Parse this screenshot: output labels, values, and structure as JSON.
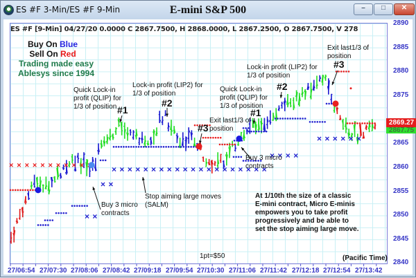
{
  "window": {
    "title": "ES #F 3-Min/ES #F 9-Min",
    "controls": {
      "minimize": "–",
      "maximize": "□",
      "close": "✕"
    },
    "icon": "app-globe-icon"
  },
  "chart": {
    "title": "E-mini S&P 500",
    "ohlc_line": "ES #F [9-Min] 04/27/20  0.0000 C 2867.7500, H 2868.0000, L 2867.2500, O 2867.7500, V 278",
    "legend": {
      "buy_prefix": "Buy On ",
      "buy_color_word": "Blue",
      "sell_prefix": "Sell On ",
      "sell_color_word": "Red",
      "tagline1": "Trading made easy",
      "tagline2": "Ablesys since 1994"
    },
    "price_tags": {
      "upper": "2869.27",
      "lower": "2867.75"
    },
    "footer_note": "1pt=$50",
    "timezone": "(Pacific Time)",
    "colors": {
      "up_bar": "#1a1ad0",
      "down_bar": "#e01818",
      "neutral_bar": "#22dd22",
      "axis_text": "#3535c6",
      "legend_green": "#1e7a4a",
      "grid": "#c9f0f5"
    }
  },
  "annotations": {
    "qlip_left": [
      "Quick Lock-in",
      "profit (QLIP) for",
      "1/3 of position"
    ],
    "lip2_left": [
      "Lock-in profit (LIP2) for",
      "1/3 of position"
    ],
    "exit_mid": [
      "Exit last1/3 of",
      "position"
    ],
    "qlip_right": [
      "Quick Lock-in",
      "profit (QLIP) for",
      "1/3 of position"
    ],
    "lip2_right": [
      "Lock-in profit (LIP2) for",
      "1/3 of position"
    ],
    "exit_right": [
      "Exit last1/3 of",
      "position"
    ],
    "buy_left": [
      "Buy 3 micro",
      "contracts"
    ],
    "buy_right": [
      "Buy 3 micro",
      "contracts"
    ],
    "salm": [
      "Stop aiming large moves",
      "(SALM)"
    ],
    "info": [
      "At 1/10th the size of a classic",
      "E-mini contract, Micro E-minis",
      "empowers you to take profit",
      "progressively and be able to",
      "set the stop aiming large move."
    ],
    "markers": {
      "m1_left": "#1",
      "m2_left": "#2",
      "m3_left": "#3",
      "m1_right": "#1",
      "m2_right": "#2",
      "m3_right": "#3"
    }
  },
  "chart_data": {
    "type": "ohlc",
    "title": "E-mini S&P 500",
    "subtitle": "ES #F [9-Min] 04/27/20",
    "xlabel": "(Pacific Time)",
    "ylabel": "",
    "ylim": [
      2840,
      2890
    ],
    "yticks": [
      2840,
      2845,
      2850,
      2855,
      2860,
      2865,
      2870,
      2875,
      2880,
      2885,
      2890
    ],
    "xticks": [
      "27/06:54",
      "27/07:30",
      "27/08:06",
      "27/08:42",
      "27/09:18",
      "27/09:54",
      "27/10:30",
      "27/11:06",
      "27/11:42",
      "27/12:18",
      "27/12:54",
      "27/13:42"
    ],
    "grid": true,
    "last_bar": {
      "open": 2867.75,
      "high": 2868.0,
      "low": 2867.25,
      "close": 2867.75,
      "volume": 278
    },
    "price_markers": [
      2869.27,
      2867.75
    ],
    "signals": [
      {
        "type": "buy",
        "label": "Buy 3 micro contracts",
        "time_index": 1,
        "price": 2858.3
      },
      {
        "type": "buy",
        "label": "Buy 3 micro contracts",
        "time_index": 7,
        "price": 2866.0
      },
      {
        "type": "exit",
        "label": "#3 Exit last1/3 of position",
        "time_index": 6,
        "price": 2864.0
      },
      {
        "type": "exit",
        "label": "#3 Exit last1/3 of position",
        "time_index": 10,
        "price": 2873.0
      }
    ],
    "approx_price_path": {
      "x": [
        "27/06:54",
        "27/07:30",
        "27/08:06",
        "27/08:42",
        "27/09:18",
        "27/09:54",
        "27/10:30",
        "27/11:06",
        "27/11:42",
        "27/12:18",
        "27/12:54",
        "27/13:42"
      ],
      "close": [
        2850,
        2856,
        2860,
        2868,
        2870,
        2867,
        2862,
        2867,
        2873,
        2877,
        2867,
        2868
      ]
    }
  }
}
